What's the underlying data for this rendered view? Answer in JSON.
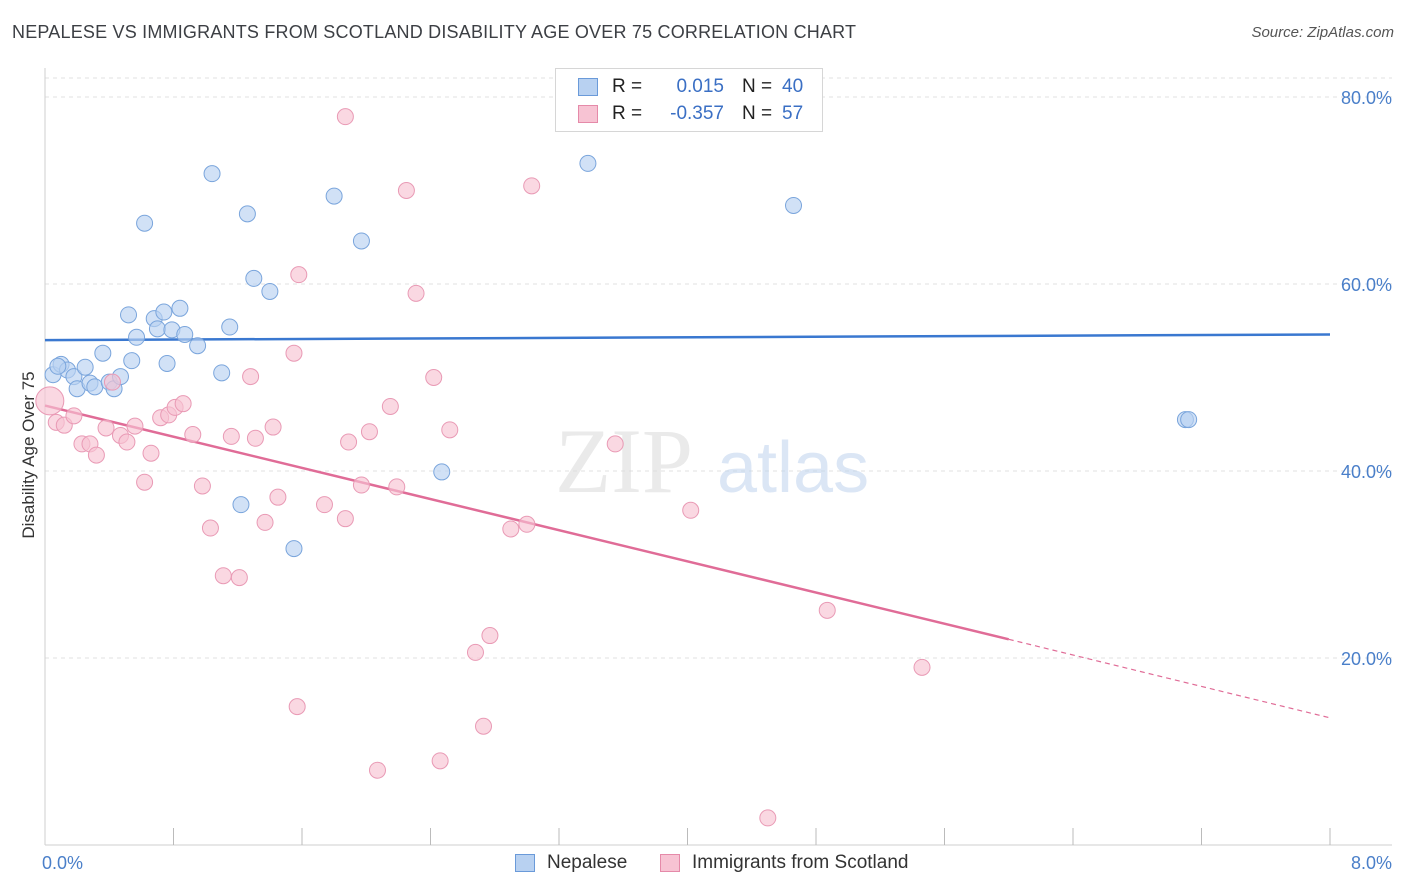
{
  "title": "NEPALESE VS IMMIGRANTS FROM SCOTLAND DISABILITY AGE OVER 75 CORRELATION CHART",
  "source": "Source: ZipAtlas.com",
  "watermark": {
    "zip": "ZIP",
    "atlas": "atlas"
  },
  "legend": {
    "rows": [
      {
        "r_label": "R =",
        "r_value": "0.015",
        "n_label": "N =",
        "n_value": "40"
      },
      {
        "r_label": "R =",
        "r_value": "-0.357",
        "n_label": "N =",
        "n_value": "57"
      }
    ]
  },
  "bottom_legend": [
    "Nepalese",
    "Immigrants from Scotland"
  ],
  "colors": {
    "blue": "#3a78d0",
    "blue_fill": "#b8d1f1",
    "pink": "#e06c97",
    "pink_fill": "#f7c3d3",
    "grid": "#e2e2e2",
    "tick": "#4a7fc9"
  },
  "chart_data": {
    "type": "scatter",
    "title": "NEPALESE VS IMMIGRANTS FROM SCOTLAND DISABILITY AGE OVER 75 CORRELATION CHART",
    "xlabel": "",
    "ylabel": "Disability Age Over 75",
    "xlim": [
      0,
      8
    ],
    "ylim": [
      0,
      82
    ],
    "x_tick_labels": [
      "0.0%",
      "8.0%"
    ],
    "y_ticks": [
      20,
      40,
      60,
      80
    ],
    "y_tick_labels": [
      "20.0%",
      "40.0%",
      "60.0%",
      "80.0%"
    ],
    "series": [
      {
        "name": "Nepalese",
        "R": 0.015,
        "N": 40,
        "trend": {
          "x0": 0,
          "y0": 54.0,
          "x1": 8.0,
          "y1": 54.6,
          "dashed_after": null
        },
        "points": [
          [
            0.05,
            50.3
          ],
          [
            0.1,
            51.4
          ],
          [
            0.14,
            50.8
          ],
          [
            0.18,
            50.1
          ],
          [
            0.2,
            48.8
          ],
          [
            0.25,
            51.1
          ],
          [
            0.28,
            49.4
          ],
          [
            0.31,
            49.0
          ],
          [
            0.36,
            52.6
          ],
          [
            0.4,
            49.5
          ],
          [
            0.43,
            48.8
          ],
          [
            0.47,
            50.1
          ],
          [
            0.52,
            56.7
          ],
          [
            0.54,
            51.8
          ],
          [
            0.57,
            54.3
          ],
          [
            0.62,
            66.5
          ],
          [
            0.68,
            56.3
          ],
          [
            0.7,
            55.2
          ],
          [
            0.74,
            57.0
          ],
          [
            0.76,
            51.5
          ],
          [
            0.79,
            55.1
          ],
          [
            0.84,
            57.4
          ],
          [
            0.87,
            54.6
          ],
          [
            0.95,
            53.4
          ],
          [
            1.04,
            71.8
          ],
          [
            1.1,
            50.5
          ],
          [
            1.15,
            55.4
          ],
          [
            1.22,
            36.4
          ],
          [
            1.26,
            67.5
          ],
          [
            1.3,
            60.6
          ],
          [
            1.4,
            59.2
          ],
          [
            1.55,
            31.7
          ],
          [
            1.8,
            69.4
          ],
          [
            1.97,
            64.6
          ],
          [
            2.47,
            39.9
          ],
          [
            3.38,
            72.9
          ],
          [
            4.66,
            68.4
          ],
          [
            7.1,
            45.5
          ],
          [
            7.12,
            45.5
          ],
          [
            0.08,
            51.2
          ]
        ]
      },
      {
        "name": "Immigrants from Scotland",
        "R": -0.357,
        "N": 57,
        "trend": {
          "x0": 0,
          "y0": 47.0,
          "x1": 6.0,
          "y1": 22.0,
          "dash_to_x": 8.0,
          "dash_to_y": 13.6
        },
        "points": [
          [
            0.03,
            47.5
          ],
          [
            0.07,
            45.2
          ],
          [
            0.12,
            44.9
          ],
          [
            0.18,
            45.9
          ],
          [
            0.23,
            42.9
          ],
          [
            0.28,
            42.9
          ],
          [
            0.32,
            41.7
          ],
          [
            0.38,
            44.6
          ],
          [
            0.42,
            49.5
          ],
          [
            0.47,
            43.8
          ],
          [
            0.51,
            43.1
          ],
          [
            0.56,
            44.8
          ],
          [
            0.62,
            38.8
          ],
          [
            0.66,
            41.9
          ],
          [
            0.72,
            45.7
          ],
          [
            0.77,
            46.0
          ],
          [
            0.81,
            46.8
          ],
          [
            0.86,
            47.2
          ],
          [
            0.92,
            43.9
          ],
          [
            0.98,
            38.4
          ],
          [
            1.03,
            33.9
          ],
          [
            1.11,
            28.8
          ],
          [
            1.16,
            43.7
          ],
          [
            1.21,
            28.6
          ],
          [
            1.28,
            50.1
          ],
          [
            1.31,
            43.5
          ],
          [
            1.37,
            34.5
          ],
          [
            1.42,
            44.7
          ],
          [
            1.45,
            37.2
          ],
          [
            1.55,
            52.6
          ],
          [
            1.58,
            61.0
          ],
          [
            1.57,
            14.8
          ],
          [
            1.74,
            36.4
          ],
          [
            1.87,
            34.9
          ],
          [
            1.89,
            43.1
          ],
          [
            1.97,
            38.5
          ],
          [
            2.02,
            44.2
          ],
          [
            2.07,
            8.0
          ],
          [
            2.15,
            46.9
          ],
          [
            2.19,
            38.3
          ],
          [
            2.25,
            70.0
          ],
          [
            2.31,
            59.0
          ],
          [
            2.42,
            50.0
          ],
          [
            2.46,
            9.0
          ],
          [
            2.52,
            44.4
          ],
          [
            2.68,
            20.6
          ],
          [
            2.73,
            12.7
          ],
          [
            2.77,
            22.4
          ],
          [
            2.9,
            33.8
          ],
          [
            3.0,
            34.3
          ],
          [
            3.03,
            70.5
          ],
          [
            3.55,
            42.9
          ],
          [
            4.02,
            35.8
          ],
          [
            4.5,
            2.9
          ],
          [
            4.87,
            25.1
          ],
          [
            5.46,
            19.0
          ],
          [
            1.87,
            77.9
          ]
        ]
      }
    ]
  }
}
